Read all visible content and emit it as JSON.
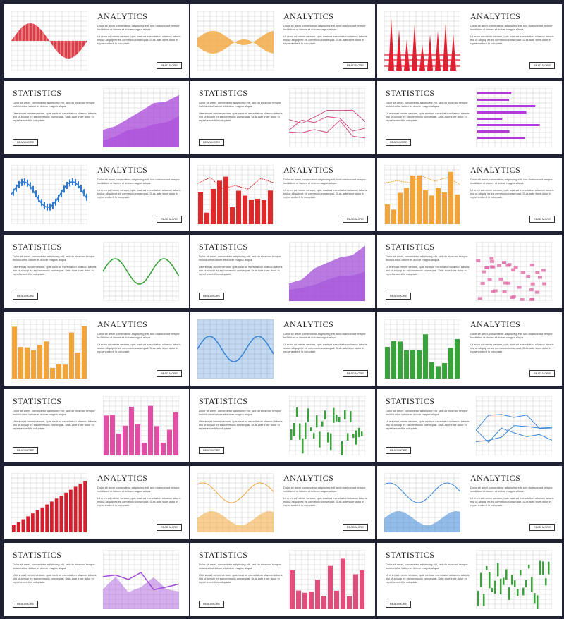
{
  "text": {
    "analytics_title": "ANALYTICS",
    "statistics_title": "STATISTICS",
    "para1": "Dolor sit amet, consectetur adipiscing elit, sed do eiusmod tempor incididunt ut labore et dolore magna aliqua.",
    "para2": "Ut enim ad minim veniam, quis nostrud exercitation ullamco laboris nisi ut aliquip ex ea commodo consequat. Duis aute irure dolor in reprehenderit in voluptate.",
    "button": "READ MORE"
  },
  "cards": [
    {
      "title_key": "analytics_title",
      "chart": "area-wave",
      "color": "#d81e2c",
      "layout": "left-chart"
    },
    {
      "title_key": "analytics_title",
      "chart": "ribbon-wave",
      "color": "#f2a63b",
      "layout": "left-chart"
    },
    {
      "title_key": "analytics_title",
      "chart": "spike-bars",
      "color": "#e02030",
      "layout": "left-chart"
    },
    {
      "title_key": "statistics_title",
      "chart": "area-lines",
      "color": "#a845d8",
      "layout": "right-chart"
    },
    {
      "title_key": "statistics_title",
      "chart": "thin-lines",
      "color": "#d24b86",
      "layout": "right-chart"
    },
    {
      "title_key": "statistics_title",
      "chart": "hbars",
      "color": "#b23ad6",
      "layout": "right-chart"
    },
    {
      "title_key": "analytics_title",
      "chart": "candle-wave",
      "color": "#2f7bd0",
      "layout": "left-chart"
    },
    {
      "title_key": "analytics_title",
      "chart": "bars-line",
      "color": "#de2a2a",
      "layout": "left-chart"
    },
    {
      "title_key": "analytics_title",
      "chart": "bars-trend",
      "color": "#f0a43a",
      "layout": "left-chart"
    },
    {
      "title_key": "statistics_title",
      "chart": "sine-line",
      "color": "#3aa23a",
      "layout": "right-chart"
    },
    {
      "title_key": "statistics_title",
      "chart": "layer-area",
      "color": "#a24dd8",
      "layout": "right-chart"
    },
    {
      "title_key": "statistics_title",
      "chart": "pink-blocks",
      "color": "#e06ca6",
      "layout": "right-chart"
    },
    {
      "title_key": "analytics_title",
      "chart": "bars",
      "color": "#f0a43a",
      "layout": "left-chart"
    },
    {
      "title_key": "analytics_title",
      "chart": "blue-waves",
      "color": "#3b86d6",
      "layout": "left-chart"
    },
    {
      "title_key": "analytics_title",
      "chart": "green-bars",
      "color": "#3aa23a",
      "layout": "left-chart"
    },
    {
      "title_key": "statistics_title",
      "chart": "bars",
      "color": "#e04fa4",
      "layout": "right-chart"
    },
    {
      "title_key": "statistics_title",
      "chart": "candles",
      "color": "#3aa23a",
      "layout": "right-chart"
    },
    {
      "title_key": "statistics_title",
      "chart": "blue-lines",
      "color": "#3b86d6",
      "layout": "right-chart"
    },
    {
      "title_key": "analytics_title",
      "chart": "growth",
      "color": "#d81e2c",
      "layout": "left-chart"
    },
    {
      "title_key": "analytics_title",
      "chart": "orange-mixed",
      "color": "#f2a63b",
      "layout": "left-chart"
    },
    {
      "title_key": "analytics_title",
      "chart": "blue-mixed",
      "color": "#3b86d6",
      "layout": "left-chart"
    },
    {
      "title_key": "statistics_title",
      "chart": "purple-line",
      "color": "#a24dd8",
      "layout": "right-chart"
    },
    {
      "title_key": "statistics_title",
      "chart": "pink-bars",
      "color": "#e04f7c",
      "layout": "right-chart"
    },
    {
      "title_key": "statistics_title",
      "chart": "green-noise",
      "color": "#3aa23a",
      "layout": "right-chart"
    }
  ]
}
